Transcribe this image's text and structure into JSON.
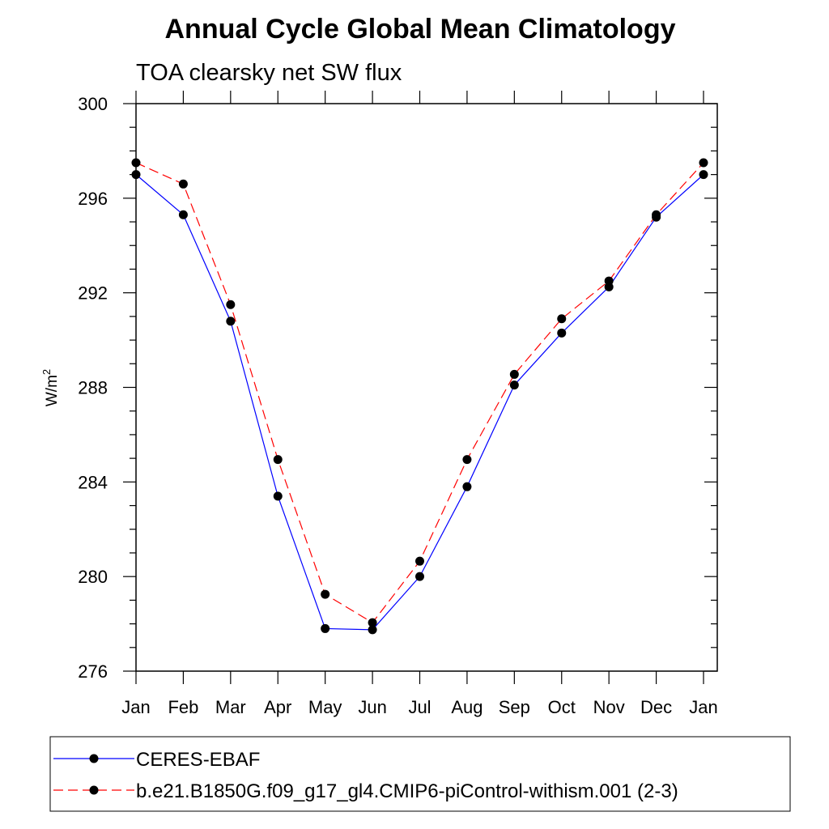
{
  "chart_data": {
    "type": "line",
    "title": "Annual Cycle Global Mean Climatology",
    "subtitle": "TOA clearsky net SW flux",
    "ylabel_base": "W/m",
    "ylabel_sup": "2",
    "xlabel": "",
    "categories": [
      "Jan",
      "Feb",
      "Mar",
      "Apr",
      "May",
      "Jun",
      "Jul",
      "Aug",
      "Sep",
      "Oct",
      "Nov",
      "Dec",
      "Jan"
    ],
    "ylim": [
      276,
      300
    ],
    "yticks": [
      276,
      280,
      284,
      288,
      292,
      296,
      300
    ],
    "grid": false,
    "legend_position": "bottom",
    "series": [
      {
        "name": "CERES-EBAF",
        "color": "#0000ff",
        "line_style": "solid",
        "marker": "filled-circle",
        "values": [
          297.0,
          295.3,
          290.8,
          283.4,
          277.8,
          277.75,
          280.0,
          283.8,
          288.1,
          290.3,
          292.25,
          295.2,
          297.0
        ]
      },
      {
        "name": "b.e21.B1850G.f09_g17_gl4.CMIP6-piControl-withism.001 (2-3)",
        "color": "#ff0000",
        "line_style": "dashed",
        "marker": "filled-circle",
        "values": [
          297.5,
          296.6,
          291.5,
          284.95,
          279.25,
          278.05,
          280.65,
          284.95,
          288.55,
          290.9,
          292.5,
          295.3,
          297.5
        ]
      }
    ]
  }
}
